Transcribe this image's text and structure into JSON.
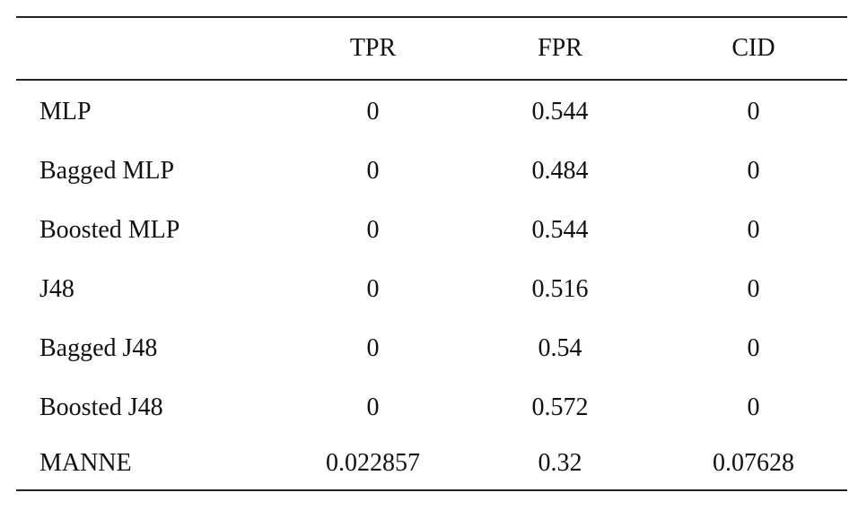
{
  "table": {
    "columns": [
      "",
      "TPR",
      "FPR",
      "CID"
    ],
    "rows": [
      [
        "MLP",
        "0",
        "0.544",
        "0"
      ],
      [
        "Bagged MLP",
        "0",
        "0.484",
        "0"
      ],
      [
        "Boosted MLP",
        "0",
        "0.544",
        "0"
      ],
      [
        "J48",
        "0",
        "0.516",
        "0"
      ],
      [
        "Bagged J48",
        "0",
        "0.54",
        "0"
      ],
      [
        "Boosted J48",
        "0",
        "0.572",
        "0"
      ],
      [
        "MANNE",
        "0.022857",
        "0.32",
        "0.07628"
      ]
    ]
  }
}
